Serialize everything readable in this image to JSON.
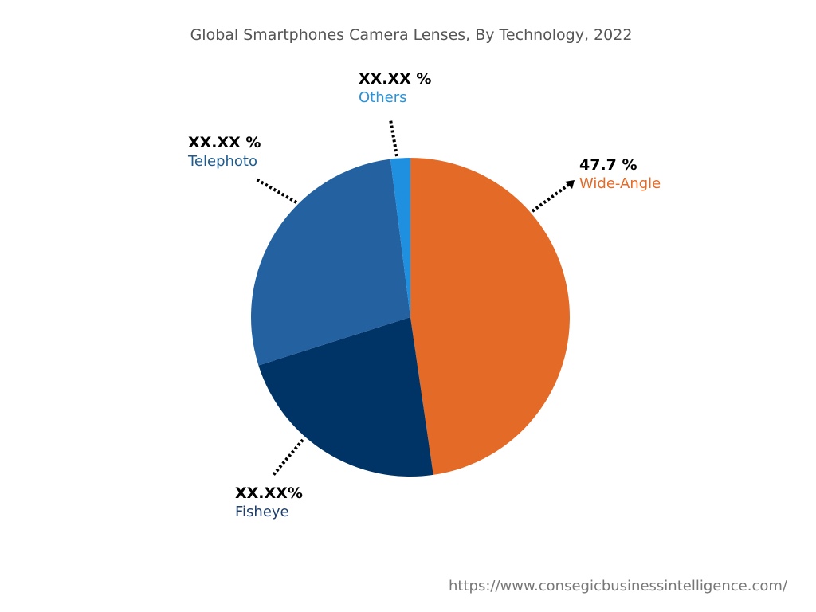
{
  "chart_data": {
    "type": "pie",
    "title": "Global Smartphones Camera Lenses, By Technology, 2022",
    "slices": [
      {
        "name": "Wide-Angle",
        "value": 47.7,
        "label": "47.7 %",
        "color": "#E46A27"
      },
      {
        "name": "Fisheye",
        "value": 22.4,
        "label": "XX.XX%",
        "color": "#003366"
      },
      {
        "name": "Telephoto",
        "value": 27.9,
        "label": "XX.XX %",
        "color": "#2461A0"
      },
      {
        "name": "Others",
        "value": 2.0,
        "label": "XX.XX %",
        "color": "#1F8FE0"
      }
    ],
    "label_colors": {
      "Wide-Angle": "#E46A27",
      "Fisheye": "#1F3F6A",
      "Telephoto": "#1F5B8C",
      "Others": "#2A93D8"
    },
    "start_angle": "12 o'clock, clockwise"
  },
  "footer": {
    "url": "https://www.consegicbusinessintelligence.com/"
  }
}
